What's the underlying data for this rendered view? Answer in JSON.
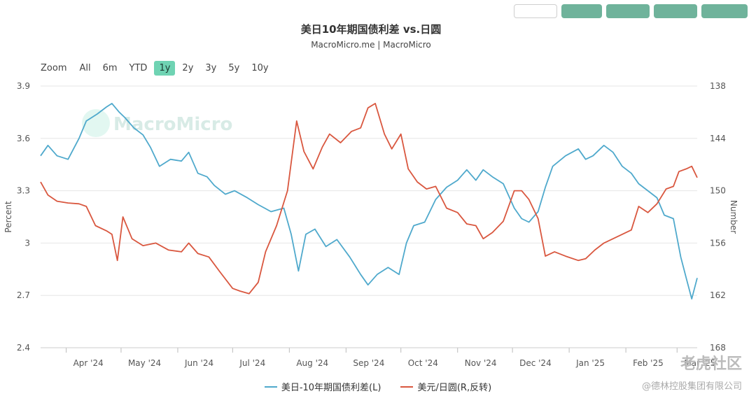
{
  "colors": {
    "spread": "#4fa9cc",
    "usdjpy": "#d9573f",
    "active_zoom": "#6fd3b3",
    "grid": "#e6e6e6"
  },
  "header": {
    "title": "美日10年期国债利差 vs.日圆",
    "subtitle": "MacroMicro.me | MacroMicro"
  },
  "zoom": {
    "label": "Zoom",
    "options": [
      "All",
      "6m",
      "YTD",
      "1y",
      "2y",
      "3y",
      "5y",
      "10y"
    ],
    "active": "1y"
  },
  "watermark_text": "MacroMicro",
  "footer_brand": "老虎社区",
  "footer_credit": "@德林控股集团有限公司",
  "chart_data": {
    "type": "line",
    "x_tick_labels": [
      "Apr '24",
      "May '24",
      "Jun '24",
      "Jul '24",
      "Aug '24",
      "Sep '24",
      "Oct '24",
      "Nov '24",
      "Dec '24",
      "Jan '25",
      "Feb '25",
      "Mar '25"
    ],
    "ylabel_left": "Percent",
    "ylabel_right": "Number",
    "yticks_left": [
      "3.9",
      "3.6",
      "3.3",
      "3",
      "2.7",
      "2.4"
    ],
    "yticks_right": [
      "138",
      "144",
      "150",
      "156",
      "162",
      "168"
    ],
    "ylim_left": [
      2.4,
      3.9
    ],
    "ylim_right_reversed": [
      138,
      168
    ],
    "x_range": [
      "2024-03-18",
      "2025-03-12"
    ],
    "grid": true,
    "legend_position": "bottom",
    "series": [
      {
        "name": "美日-10年期国债利差(L)",
        "axis": "left",
        "points": [
          [
            "2024-03-18",
            3.5
          ],
          [
            "2024-03-22",
            3.56
          ],
          [
            "2024-03-27",
            3.5
          ],
          [
            "2024-04-02",
            3.48
          ],
          [
            "2024-04-08",
            3.6
          ],
          [
            "2024-04-12",
            3.7
          ],
          [
            "2024-04-18",
            3.74
          ],
          [
            "2024-04-23",
            3.78
          ],
          [
            "2024-04-26",
            3.8
          ],
          [
            "2024-04-30",
            3.75
          ],
          [
            "2024-05-03",
            3.72
          ],
          [
            "2024-05-08",
            3.66
          ],
          [
            "2024-05-13",
            3.62
          ],
          [
            "2024-05-17",
            3.55
          ],
          [
            "2024-05-22",
            3.44
          ],
          [
            "2024-05-28",
            3.48
          ],
          [
            "2024-06-03",
            3.47
          ],
          [
            "2024-06-07",
            3.52
          ],
          [
            "2024-06-12",
            3.4
          ],
          [
            "2024-06-17",
            3.38
          ],
          [
            "2024-06-21",
            3.33
          ],
          [
            "2024-06-27",
            3.28
          ],
          [
            "2024-07-02",
            3.3
          ],
          [
            "2024-07-09",
            3.26
          ],
          [
            "2024-07-15",
            3.22
          ],
          [
            "2024-07-22",
            3.18
          ],
          [
            "2024-07-29",
            3.2
          ],
          [
            "2024-08-02",
            3.05
          ],
          [
            "2024-08-06",
            2.84
          ],
          [
            "2024-08-10",
            3.05
          ],
          [
            "2024-08-15",
            3.08
          ],
          [
            "2024-08-21",
            2.98
          ],
          [
            "2024-08-27",
            3.02
          ],
          [
            "2024-09-03",
            2.92
          ],
          [
            "2024-09-09",
            2.82
          ],
          [
            "2024-09-13",
            2.76
          ],
          [
            "2024-09-18",
            2.82
          ],
          [
            "2024-09-24",
            2.86
          ],
          [
            "2024-09-30",
            2.82
          ],
          [
            "2024-10-04",
            3.0
          ],
          [
            "2024-10-08",
            3.1
          ],
          [
            "2024-10-14",
            3.12
          ],
          [
            "2024-10-20",
            3.25
          ],
          [
            "2024-10-26",
            3.32
          ],
          [
            "2024-11-01",
            3.36
          ],
          [
            "2024-11-06",
            3.42
          ],
          [
            "2024-11-11",
            3.36
          ],
          [
            "2024-11-15",
            3.42
          ],
          [
            "2024-11-20",
            3.38
          ],
          [
            "2024-11-26",
            3.34
          ],
          [
            "2024-12-02",
            3.2
          ],
          [
            "2024-12-06",
            3.14
          ],
          [
            "2024-12-10",
            3.12
          ],
          [
            "2024-12-15",
            3.18
          ],
          [
            "2024-12-19",
            3.32
          ],
          [
            "2024-12-23",
            3.44
          ],
          [
            "2024-12-30",
            3.5
          ],
          [
            "2025-01-06",
            3.54
          ],
          [
            "2025-01-10",
            3.48
          ],
          [
            "2025-01-14",
            3.5
          ],
          [
            "2025-01-20",
            3.56
          ],
          [
            "2025-01-25",
            3.52
          ],
          [
            "2025-01-30",
            3.44
          ],
          [
            "2025-02-04",
            3.4
          ],
          [
            "2025-02-08",
            3.34
          ],
          [
            "2025-02-13",
            3.3
          ],
          [
            "2025-02-18",
            3.26
          ],
          [
            "2025-02-22",
            3.16
          ],
          [
            "2025-02-27",
            3.14
          ],
          [
            "2025-03-03",
            2.92
          ],
          [
            "2025-03-06",
            2.8
          ],
          [
            "2025-03-09",
            2.68
          ],
          [
            "2025-03-12",
            2.8
          ]
        ]
      },
      {
        "name": "美元/日圆(R,反转)",
        "axis": "right",
        "points": [
          [
            "2024-03-18",
            149.0
          ],
          [
            "2024-03-22",
            150.5
          ],
          [
            "2024-03-27",
            151.2
          ],
          [
            "2024-04-02",
            151.4
          ],
          [
            "2024-04-08",
            151.5
          ],
          [
            "2024-04-12",
            151.8
          ],
          [
            "2024-04-17",
            154.0
          ],
          [
            "2024-04-23",
            154.6
          ],
          [
            "2024-04-26",
            155.0
          ],
          [
            "2024-04-29",
            158.0
          ],
          [
            "2024-05-02",
            153.0
          ],
          [
            "2024-05-07",
            155.5
          ],
          [
            "2024-05-13",
            156.3
          ],
          [
            "2024-05-20",
            156.0
          ],
          [
            "2024-05-27",
            156.8
          ],
          [
            "2024-06-03",
            157.0
          ],
          [
            "2024-06-07",
            156.0
          ],
          [
            "2024-06-12",
            157.2
          ],
          [
            "2024-06-18",
            157.6
          ],
          [
            "2024-06-24",
            159.3
          ],
          [
            "2024-07-01",
            161.2
          ],
          [
            "2024-07-05",
            161.5
          ],
          [
            "2024-07-10",
            161.8
          ],
          [
            "2024-07-15",
            160.5
          ],
          [
            "2024-07-19",
            157.0
          ],
          [
            "2024-07-25",
            154.0
          ],
          [
            "2024-07-31",
            150.0
          ],
          [
            "2024-08-05",
            142.0
          ],
          [
            "2024-08-09",
            145.5
          ],
          [
            "2024-08-14",
            147.5
          ],
          [
            "2024-08-19",
            145.0
          ],
          [
            "2024-08-23",
            143.5
          ],
          [
            "2024-08-29",
            144.5
          ],
          [
            "2024-09-04",
            143.2
          ],
          [
            "2024-09-09",
            142.8
          ],
          [
            "2024-09-13",
            140.5
          ],
          [
            "2024-09-17",
            140.0
          ],
          [
            "2024-09-22",
            143.5
          ],
          [
            "2024-09-26",
            145.2
          ],
          [
            "2024-10-01",
            143.5
          ],
          [
            "2024-10-05",
            147.5
          ],
          [
            "2024-10-10",
            149.0
          ],
          [
            "2024-10-15",
            149.8
          ],
          [
            "2024-10-20",
            149.5
          ],
          [
            "2024-10-26",
            152.0
          ],
          [
            "2024-11-01",
            152.5
          ],
          [
            "2024-11-06",
            153.8
          ],
          [
            "2024-11-11",
            154.0
          ],
          [
            "2024-11-15",
            155.5
          ],
          [
            "2024-11-20",
            154.8
          ],
          [
            "2024-11-26",
            153.5
          ],
          [
            "2024-12-02",
            150.0
          ],
          [
            "2024-12-06",
            150.0
          ],
          [
            "2024-12-10",
            151.0
          ],
          [
            "2024-12-15",
            153.2
          ],
          [
            "2024-12-19",
            157.5
          ],
          [
            "2024-12-24",
            157.0
          ],
          [
            "2024-12-30",
            157.5
          ],
          [
            "2025-01-06",
            158.0
          ],
          [
            "2025-01-10",
            157.8
          ],
          [
            "2025-01-15",
            156.8
          ],
          [
            "2025-01-20",
            156.0
          ],
          [
            "2025-01-25",
            155.5
          ],
          [
            "2025-01-30",
            155.0
          ],
          [
            "2025-02-04",
            154.5
          ],
          [
            "2025-02-08",
            151.8
          ],
          [
            "2025-02-13",
            152.5
          ],
          [
            "2025-02-18",
            151.5
          ],
          [
            "2025-02-23",
            149.8
          ],
          [
            "2025-02-27",
            149.5
          ],
          [
            "2025-03-02",
            147.8
          ],
          [
            "2025-03-06",
            147.5
          ],
          [
            "2025-03-09",
            147.2
          ],
          [
            "2025-03-12",
            148.5
          ]
        ]
      }
    ]
  }
}
